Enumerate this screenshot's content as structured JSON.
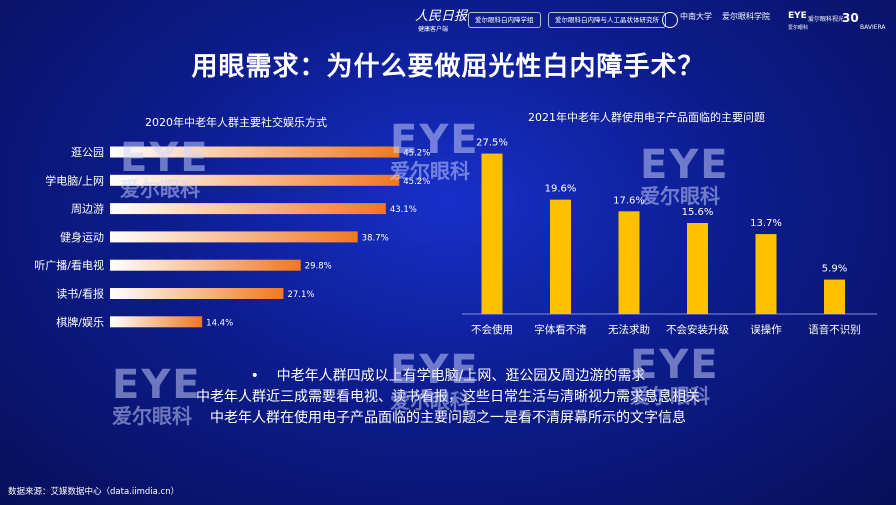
{
  "header": {
    "logo_main": "人民日报",
    "logo_sub": "健康客户端",
    "tag1": "爱尔眼科白内障学组",
    "tag2": "爱尔眼科白内障与人工晶状体研究所",
    "partner1": "中南大学",
    "partner2": "爱尔眼科学院",
    "eye_mini": "EYE",
    "eye_mini_sub": "爱尔眼科",
    "partner3": "爱尔眼科视光",
    "baviera_number": "30",
    "baviera_name": "BAVIERA"
  },
  "page_title": "用眼需求：为什么要做屈光性白内障手术？",
  "chart_data": [
    {
      "type": "bar",
      "orientation": "horizontal",
      "title": "2020年中老年人群主要社交娱乐方式",
      "categories": [
        "逛公园",
        "学电脑/上网",
        "周边游",
        "健身运动",
        "听广播/看电视",
        "读书/看报",
        "棋牌/娱乐"
      ],
      "values": [
        45.2,
        45.2,
        43.1,
        38.7,
        29.8,
        27.1,
        14.4
      ],
      "value_labels": [
        "45.2%",
        "45.2%",
        "43.1%",
        "38.7%",
        "29.8%",
        "27.1%",
        "14.4%"
      ],
      "xlim": [
        0,
        50
      ],
      "grid": false,
      "legend": "none",
      "colors": [
        "#ffffff",
        "#f07820"
      ]
    },
    {
      "type": "bar",
      "orientation": "vertical",
      "title": "2021年中老年人群使用电子产品面临的主要问题",
      "categories": [
        "不会使用",
        "字体看不清",
        "无法求助",
        "不会安装升级",
        "误操作",
        "语音不识别"
      ],
      "values": [
        27.5,
        19.6,
        17.6,
        15.6,
        13.7,
        5.9
      ],
      "value_labels": [
        "27.5%",
        "19.6%",
        "17.6%",
        "15.6%",
        "13.7%",
        "5.9%"
      ],
      "ylim": [
        0,
        30
      ],
      "grid": false,
      "legend": "none",
      "colors": [
        "#ffc000"
      ]
    }
  ],
  "bullets": {
    "marker": "•",
    "line1": "中老年人群四成以上有学电脑/上网、逛公园及周边游的需求",
    "line2": "中老年人群近三成需要看电视、读书看报，这些日常生活与清晰视力需求息息相关",
    "line3": "中老年人群在使用电子产品面临的主要问题之一是看不清屏幕所示的文字信息"
  },
  "source": "数据来源：艾媒数据中心（data.iimdia.cn）",
  "watermark": {
    "text_en": "EYE",
    "text_zh": "爱尔眼科"
  }
}
